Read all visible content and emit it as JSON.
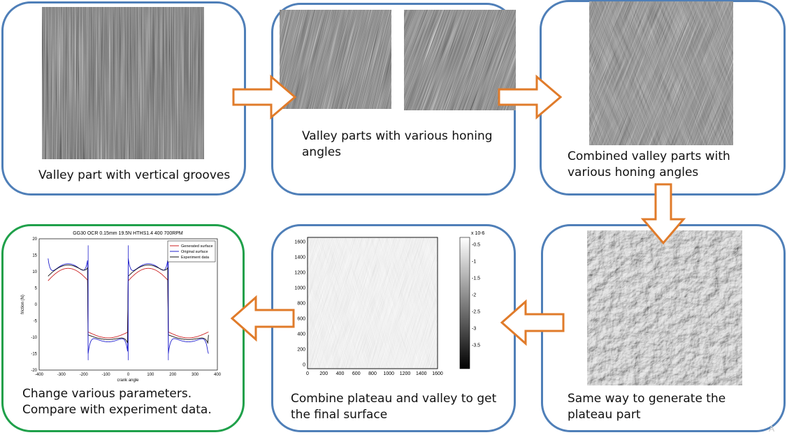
{
  "captions": {
    "step1": "Valley part with vertical grooves",
    "step2": "Valley parts with various honing angles",
    "step3": "Combined valley parts with various honing angles",
    "step4": "Same way to generate the plateau part",
    "step5": "Combine plateau and valley to get the final surface",
    "step6": "Change various parameters. Compare with experiment data."
  },
  "surface_plot": {
    "x_ticks": [
      "0",
      "200",
      "400",
      "600",
      "800",
      "1000",
      "1200",
      "1400",
      "1600"
    ],
    "y_ticks": [
      "1600",
      "1400",
      "1200",
      "1000",
      "800",
      "600",
      "400",
      "200",
      "0"
    ],
    "colorbar_ticks": [
      "-0.5",
      "-1",
      "-1.5",
      "-2",
      "-2.5",
      "-3",
      "-3.5"
    ],
    "colorbar_exponent": "x 10-6"
  },
  "friction_plot": {
    "title": "GG30 OCR 0.15mm 19.5N HTHS1.4 400 700RPM",
    "xlabel": "crank angle",
    "ylabel": "friction (N)",
    "x_ticks": [
      "-400",
      "-300",
      "-200",
      "-100",
      "0",
      "100",
      "200",
      "300",
      "400"
    ],
    "y_ticks": [
      "20",
      "15",
      "10",
      "5",
      "0",
      "-5",
      "-10",
      "-15",
      "-20"
    ],
    "legend": [
      "Generated surface",
      "Original surface",
      "Experiment data"
    ]
  },
  "colors": {
    "box_border": "#4f7fb8",
    "final_box_border": "#1fa04a",
    "arrow": "#e07b2a",
    "series": [
      "#cc2222",
      "#2222cc",
      "#111111"
    ]
  },
  "page_mark": "A"
}
